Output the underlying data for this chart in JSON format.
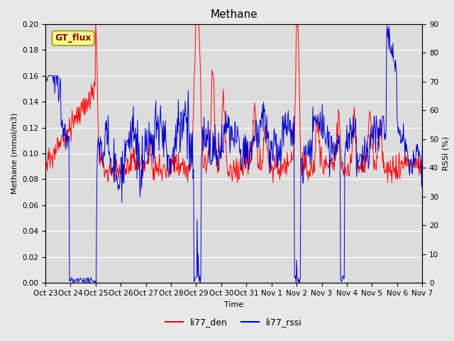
{
  "title": "Methane",
  "xlabel": "Time",
  "ylabel_left": "Methane (mmol/m3)",
  "ylabel_right": "RSSI (%)",
  "ylim_left": [
    0.0,
    0.2
  ],
  "ylim_right": [
    0,
    90
  ],
  "yticks_left": [
    0.0,
    0.02,
    0.04,
    0.06,
    0.08,
    0.1,
    0.12,
    0.14,
    0.16,
    0.18,
    0.2
  ],
  "yticks_right": [
    0,
    10,
    20,
    30,
    40,
    50,
    60,
    70,
    80,
    90
  ],
  "xtick_labels": [
    "Oct 23",
    "Oct 24",
    "Oct 25",
    "Oct 26",
    "Oct 27",
    "Oct 28",
    "Oct 29",
    "Oct 30",
    "Oct 31",
    "Nov 1",
    "Nov 2",
    "Nov 3",
    "Nov 4",
    "Nov 5",
    "Nov 6",
    "Nov 7"
  ],
  "color_red": "#FF0000",
  "color_blue": "#0000CD",
  "legend_label_red": "li77_den",
  "legend_label_blue": "li77_rssi",
  "annotation_text": "GT_flux",
  "annotation_color": "#8B0000",
  "annotation_bg": "#FFFF99",
  "background_color": "#DCDCDC",
  "grid_color": "#FFFFFF",
  "fig_bg": "#E8E8E8",
  "title_fontsize": 11,
  "label_fontsize": 8,
  "tick_fontsize": 7.5
}
